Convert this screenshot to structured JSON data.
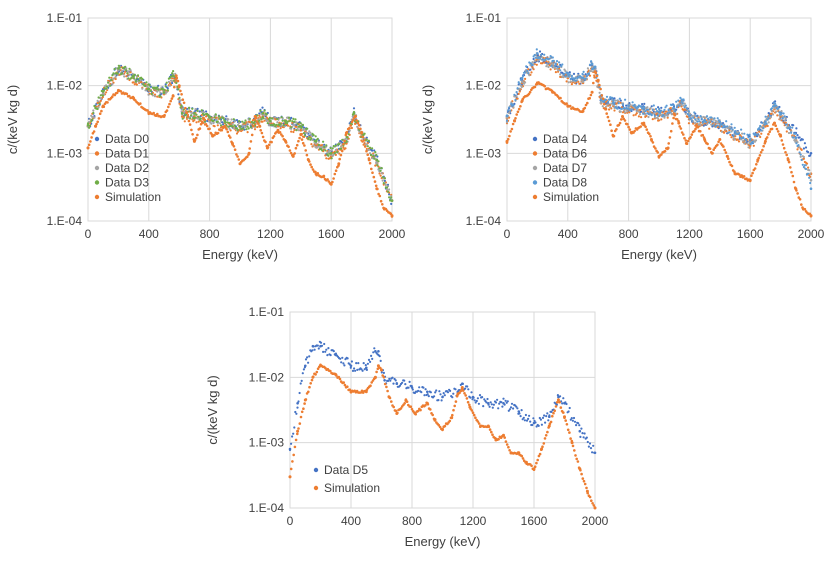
{
  "chart_data": [
    {
      "type": "scatter",
      "title": "",
      "xlabel": "Energy (keV)",
      "ylabel": "c/(keV kg d)",
      "xlim": [
        0,
        2000
      ],
      "ylim": [
        0.0001,
        0.1
      ],
      "yscale": "log",
      "x_ticks": [
        "0",
        "400",
        "800",
        "1200",
        "1600",
        "2000"
      ],
      "y_ticks": [
        "1.E-04",
        "1.E-03",
        "1.E-02",
        "1.E-01"
      ],
      "legend_position": "bottom-left",
      "series": [
        {
          "name": "Data D0",
          "color": "#4472c4",
          "x": [
            0,
            100,
            200,
            300,
            400,
            500,
            560,
            580,
            620,
            700,
            800,
            900,
            1000,
            1100,
            1150,
            1200,
            1300,
            1400,
            1500,
            1600,
            1700,
            1750,
            1800,
            1900,
            2000
          ],
          "y": [
            0.0025,
            0.008,
            0.018,
            0.014,
            0.009,
            0.008,
            0.014,
            0.013,
            0.004,
            0.004,
            0.0035,
            0.003,
            0.0025,
            0.003,
            0.004,
            0.003,
            0.003,
            0.0025,
            0.0015,
            0.001,
            0.0015,
            0.004,
            0.002,
            0.0008,
            0.0002
          ]
        },
        {
          "name": "Data D1",
          "color": "#ed7d31",
          "x": [
            0,
            100,
            200,
            300,
            400,
            500,
            560,
            580,
            620,
            700,
            800,
            900,
            1000,
            1100,
            1150,
            1200,
            1300,
            1400,
            1500,
            1600,
            1700,
            1750,
            1800,
            1900,
            2000
          ],
          "y": [
            0.0025,
            0.0075,
            0.017,
            0.013,
            0.0085,
            0.0075,
            0.013,
            0.012,
            0.0035,
            0.0035,
            0.003,
            0.0028,
            0.0022,
            0.0027,
            0.0035,
            0.0028,
            0.0027,
            0.0022,
            0.0013,
            0.0009,
            0.0014,
            0.0035,
            0.0018,
            0.0007,
            0.0002
          ]
        },
        {
          "name": "Data D2",
          "color": "#a5a5a5",
          "x": [
            0,
            100,
            200,
            300,
            400,
            500,
            560,
            580,
            620,
            700,
            800,
            900,
            1000,
            1100,
            1150,
            1200,
            1300,
            1400,
            1500,
            1600,
            1700,
            1750,
            1800,
            1900,
            2000
          ],
          "y": [
            0.0025,
            0.0078,
            0.017,
            0.0135,
            0.0088,
            0.0078,
            0.0135,
            0.0125,
            0.0038,
            0.0038,
            0.0033,
            0.0029,
            0.0024,
            0.0029,
            0.0038,
            0.0029,
            0.0029,
            0.0024,
            0.0014,
            0.00095,
            0.0015,
            0.0038,
            0.0019,
            0.00075,
            0.0002
          ]
        },
        {
          "name": "Data D3",
          "color": "#70ad47",
          "x": [
            0,
            100,
            200,
            300,
            400,
            500,
            560,
            580,
            620,
            700,
            800,
            900,
            1000,
            1100,
            1150,
            1200,
            1300,
            1400,
            1500,
            1600,
            1700,
            1750,
            1800,
            1900,
            2000
          ],
          "y": [
            0.0026,
            0.0082,
            0.018,
            0.014,
            0.009,
            0.0079,
            0.014,
            0.013,
            0.0039,
            0.0039,
            0.0034,
            0.003,
            0.0025,
            0.003,
            0.0039,
            0.003,
            0.003,
            0.0025,
            0.0015,
            0.001,
            0.0015,
            0.0039,
            0.002,
            0.0008,
            0.0002
          ]
        },
        {
          "name": "Simulation",
          "color": "#ed7d31",
          "x": [
            0,
            50,
            100,
            200,
            300,
            400,
            500,
            560,
            580,
            600,
            650,
            700,
            760,
            820,
            900,
            950,
            1000,
            1060,
            1100,
            1130,
            1180,
            1250,
            1300,
            1350,
            1400,
            1450,
            1500,
            1550,
            1600,
            1650,
            1700,
            1760,
            1800,
            1850,
            1900,
            1950,
            2000
          ],
          "y": [
            0.0012,
            0.0025,
            0.005,
            0.0085,
            0.0065,
            0.004,
            0.0035,
            0.007,
            0.014,
            0.01,
            0.004,
            0.0015,
            0.0033,
            0.0018,
            0.0025,
            0.0014,
            0.0007,
            0.001,
            0.0035,
            0.0025,
            0.0012,
            0.0022,
            0.0015,
            0.0009,
            0.0019,
            0.0008,
            0.0005,
            0.00045,
            0.00035,
            0.0007,
            0.002,
            0.0035,
            0.002,
            0.0008,
            0.0003,
            0.00015,
            0.00012
          ]
        }
      ]
    },
    {
      "type": "scatter",
      "title": "",
      "xlabel": "Energy (keV)",
      "ylabel": "c/(keV kg d)",
      "xlim": [
        0,
        2000
      ],
      "ylim": [
        0.0001,
        0.1
      ],
      "yscale": "log",
      "x_ticks": [
        "0",
        "400",
        "800",
        "1200",
        "1600",
        "2000"
      ],
      "y_ticks": [
        "1.E-04",
        "1.E-03",
        "1.E-02",
        "1.E-01"
      ],
      "legend_position": "bottom-left",
      "series": [
        {
          "name": "Data D4",
          "color": "#4472c4",
          "x": [
            0,
            100,
            200,
            300,
            400,
            500,
            560,
            580,
            620,
            700,
            800,
            900,
            1000,
            1100,
            1150,
            1200,
            1300,
            1400,
            1500,
            1600,
            1700,
            1760,
            1800,
            1900,
            2000
          ],
          "y": [
            0.0035,
            0.012,
            0.028,
            0.022,
            0.014,
            0.012,
            0.02,
            0.018,
            0.006,
            0.0055,
            0.005,
            0.0045,
            0.004,
            0.0045,
            0.006,
            0.0035,
            0.003,
            0.0028,
            0.002,
            0.0015,
            0.003,
            0.005,
            0.004,
            0.002,
            0.001
          ]
        },
        {
          "name": "Data D6",
          "color": "#ed7d31",
          "x": [
            0,
            100,
            200,
            300,
            400,
            500,
            560,
            580,
            620,
            700,
            800,
            900,
            1000,
            1100,
            1150,
            1200,
            1300,
            1400,
            1500,
            1600,
            1700,
            1760,
            1800,
            1900,
            2000
          ],
          "y": [
            0.0033,
            0.011,
            0.025,
            0.02,
            0.013,
            0.011,
            0.018,
            0.016,
            0.0055,
            0.005,
            0.0045,
            0.004,
            0.0036,
            0.004,
            0.0055,
            0.0032,
            0.0028,
            0.0025,
            0.0018,
            0.0013,
            0.0025,
            0.0045,
            0.0035,
            0.0015,
            0.0005
          ]
        },
        {
          "name": "Data D7",
          "color": "#a5a5a5",
          "x": [
            0,
            100,
            200,
            300,
            400,
            500,
            560,
            580,
            620,
            700,
            800,
            900,
            1000,
            1100,
            1150,
            1200,
            1300,
            1400,
            1500,
            1600,
            1700,
            1760,
            1800,
            1900,
            2000
          ],
          "y": [
            0.0034,
            0.0115,
            0.026,
            0.021,
            0.0135,
            0.0115,
            0.019,
            0.017,
            0.0057,
            0.0052,
            0.0047,
            0.0042,
            0.0038,
            0.0042,
            0.0057,
            0.0033,
            0.0029,
            0.0026,
            0.0019,
            0.0014,
            0.0027,
            0.0047,
            0.0037,
            0.0016,
            0.0004
          ]
        },
        {
          "name": "Data D8",
          "color": "#5b9bd5",
          "x": [
            0,
            100,
            200,
            300,
            400,
            500,
            560,
            580,
            620,
            700,
            800,
            900,
            1000,
            1100,
            1150,
            1200,
            1300,
            1400,
            1500,
            1600,
            1700,
            1760,
            1800,
            1900,
            2000
          ],
          "y": [
            0.0036,
            0.013,
            0.03,
            0.023,
            0.015,
            0.013,
            0.021,
            0.019,
            0.0062,
            0.0056,
            0.0051,
            0.0046,
            0.0041,
            0.0046,
            0.0062,
            0.0036,
            0.0031,
            0.0029,
            0.0021,
            0.0016,
            0.0029,
            0.005,
            0.0038,
            0.0017,
            0.0003
          ]
        },
        {
          "name": "Simulation",
          "color": "#ed7d31",
          "x": [
            0,
            50,
            100,
            200,
            300,
            400,
            500,
            560,
            580,
            600,
            650,
            700,
            760,
            820,
            900,
            950,
            1000,
            1060,
            1100,
            1130,
            1180,
            1250,
            1300,
            1350,
            1400,
            1450,
            1500,
            1550,
            1600,
            1650,
            1700,
            1760,
            1800,
            1850,
            1900,
            1950,
            2000
          ],
          "y": [
            0.0015,
            0.003,
            0.006,
            0.011,
            0.008,
            0.005,
            0.0042,
            0.008,
            0.016,
            0.012,
            0.0045,
            0.0018,
            0.0035,
            0.002,
            0.0028,
            0.0016,
            0.0009,
            0.0012,
            0.0038,
            0.0028,
            0.0014,
            0.0025,
            0.0016,
            0.001,
            0.0016,
            0.0009,
            0.0005,
            0.00045,
            0.0004,
            0.0008,
            0.0015,
            0.0028,
            0.0018,
            0.0008,
            0.0003,
            0.00015,
            0.00012
          ]
        }
      ]
    },
    {
      "type": "scatter",
      "title": "",
      "xlabel": "Energy (keV)",
      "ylabel": "c/(keV kg d)",
      "xlim": [
        0,
        2000
      ],
      "ylim": [
        0.0001,
        0.1
      ],
      "yscale": "log",
      "x_ticks": [
        "0",
        "400",
        "800",
        "1200",
        "1600",
        "2000"
      ],
      "y_ticks": [
        "1.E-04",
        "1.E-03",
        "1.E-02",
        "1.E-01"
      ],
      "legend_position": "bottom-left",
      "series": [
        {
          "name": "Data D5",
          "color": "#4472c4",
          "x": [
            0,
            50,
            100,
            150,
            200,
            300,
            400,
            500,
            560,
            580,
            620,
            700,
            800,
            900,
            1000,
            1100,
            1130,
            1200,
            1300,
            1400,
            1500,
            1600,
            1700,
            1760,
            1800,
            1900,
            2000
          ],
          "y": [
            0.0008,
            0.004,
            0.015,
            0.03,
            0.03,
            0.022,
            0.015,
            0.014,
            0.025,
            0.025,
            0.009,
            0.008,
            0.007,
            0.006,
            0.005,
            0.006,
            0.008,
            0.005,
            0.004,
            0.004,
            0.003,
            0.002,
            0.0025,
            0.005,
            0.004,
            0.0015,
            0.0007
          ]
        },
        {
          "name": "Simulation",
          "color": "#ed7d31",
          "x": [
            0,
            50,
            100,
            150,
            200,
            300,
            400,
            500,
            560,
            580,
            600,
            650,
            700,
            760,
            820,
            900,
            950,
            1000,
            1060,
            1100,
            1130,
            1180,
            1250,
            1300,
            1350,
            1400,
            1450,
            1500,
            1550,
            1600,
            1650,
            1700,
            1760,
            1800,
            1850,
            1900,
            1950,
            2000
          ],
          "y": [
            0.0003,
            0.0015,
            0.0045,
            0.01,
            0.015,
            0.011,
            0.006,
            0.006,
            0.01,
            0.015,
            0.013,
            0.005,
            0.0028,
            0.0044,
            0.0028,
            0.004,
            0.0022,
            0.0016,
            0.0024,
            0.0055,
            0.007,
            0.0035,
            0.0018,
            0.0018,
            0.0011,
            0.0013,
            0.0007,
            0.0007,
            0.0005,
            0.0004,
            0.0008,
            0.0018,
            0.0045,
            0.0025,
            0.001,
            0.0004,
            0.00018,
            0.0001
          ]
        }
      ]
    }
  ]
}
